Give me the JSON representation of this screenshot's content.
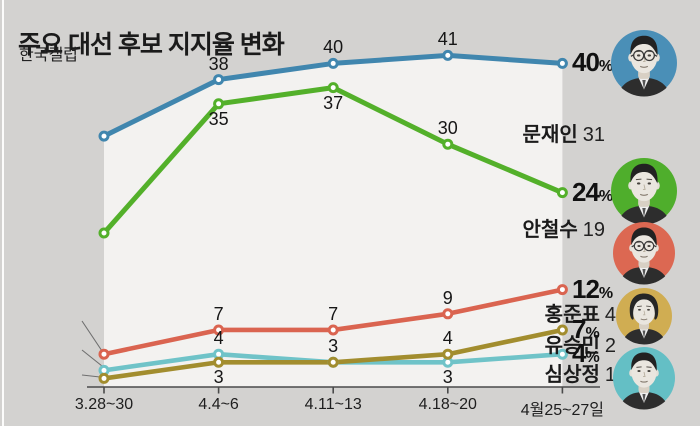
{
  "chart_data": {
    "type": "line",
    "title": "주요 대선 후보 지지율 변화",
    "source": "한국갤럽",
    "unit": "%",
    "grid": false,
    "legend_position": "left-inline-labels",
    "categories": [
      "3.28~30",
      "4.4~6",
      "4.11~13",
      "4.18~20",
      "4월25~27일"
    ],
    "ylim": [
      0,
      45
    ],
    "series": [
      {
        "name": "문재인",
        "color": "#4086ae",
        "avatar_color": "#4a8fb7",
        "portrait_icon": "portrait-man-glasses-icon",
        "values": [
          31,
          38,
          40,
          41,
          40
        ],
        "start_label": "31",
        "end_value": "40",
        "end_suffix": "%",
        "point_label_positions": [
          null,
          "above",
          "above",
          "above",
          null
        ]
      },
      {
        "name": "안철수",
        "color": "#53b02a",
        "avatar_color": "#4fae2c",
        "portrait_icon": "portrait-man-icon",
        "values": [
          19,
          35,
          37,
          30,
          24
        ],
        "start_label": "19",
        "end_value": "24",
        "end_suffix": "%",
        "point_label_positions": [
          null,
          "below",
          "below",
          "above",
          null
        ]
      },
      {
        "name": "홍준표",
        "color": "#da6450",
        "avatar_color": "#dc6852",
        "portrait_icon": "portrait-man-glasses-icon",
        "values": [
          4,
          7,
          7,
          9,
          12
        ],
        "start_label": "4",
        "end_value": "12",
        "end_suffix": "%",
        "point_label_positions": [
          null,
          "above",
          "above",
          "above",
          null
        ]
      },
      {
        "name": "유승민",
        "color": "#6fc3c8",
        "avatar_color": "#64bfc5",
        "portrait_icon": "portrait-man-icon",
        "values": [
          2,
          4,
          3,
          3,
          4
        ],
        "start_label": "2",
        "end_value": "4",
        "end_suffix": "%",
        "point_label_positions": [
          null,
          "above",
          null,
          "below",
          null
        ]
      },
      {
        "name": "심상정",
        "color": "#a28d2e",
        "avatar_color": "#d0ad52",
        "portrait_icon": "portrait-woman-icon",
        "values": [
          1,
          3,
          3,
          4,
          7
        ],
        "start_label": "1",
        "end_value": "7",
        "end_suffix": "%",
        "point_label_positions": [
          null,
          "below",
          "above",
          "above",
          null
        ]
      }
    ]
  },
  "colors": {
    "page_bg": "#d3d2d0",
    "plot_bg": "#f3f2f0",
    "axis": "#4a4a4a",
    "leader_line": "#6f6f6f",
    "text": "#1b1b1b"
  }
}
